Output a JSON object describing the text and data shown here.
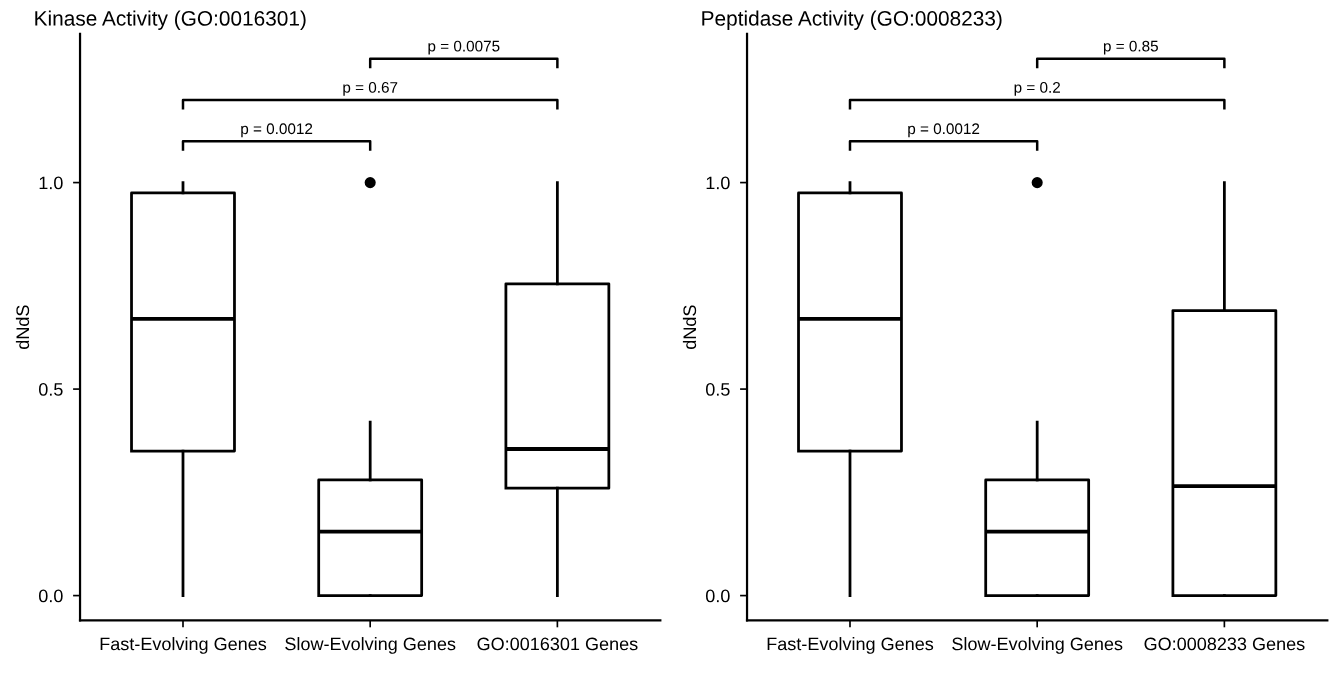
{
  "chart_data": [
    {
      "type": "box",
      "title": "Kinase Activity (GO:0016301)",
      "ylabel": "dNdS",
      "categories": [
        "Fast-Evolving Genes",
        "Slow-Evolving Genes",
        "GO:0016301 Genes"
      ],
      "boxes": [
        {
          "low": 0,
          "q1": 0.35,
          "median": 0.67,
          "q3": 0.975,
          "high": 1.0
        },
        {
          "low": 0,
          "q1": 0,
          "median": 0.155,
          "q3": 0.28,
          "high": 0.42,
          "outliers": [
            1.0
          ]
        },
        {
          "low": 0,
          "q1": 0.26,
          "median": 0.355,
          "q3": 0.755,
          "high": 1.0
        }
      ],
      "ylim": [
        -0.06,
        1.36
      ],
      "yticks": [
        {
          "value": 0,
          "label": "0.0"
        },
        {
          "value": 0.5,
          "label": "0.5"
        },
        {
          "value": 1,
          "label": "1.0"
        }
      ],
      "annotations": [
        "p = 0.0012",
        "p = 0.67",
        "p = 0.0075"
      ],
      "grid": false,
      "legend": false
    },
    {
      "type": "box",
      "title": "Peptidase Activity (GO:0008233)",
      "ylabel": "dNdS",
      "categories": [
        "Fast-Evolving Genes",
        "Slow-Evolving Genes",
        "GO:0008233 Genes"
      ],
      "boxes": [
        {
          "low": 0,
          "q1": 0.35,
          "median": 0.67,
          "q3": 0.975,
          "high": 1.0
        },
        {
          "low": 0,
          "q1": 0,
          "median": 0.155,
          "q3": 0.28,
          "high": 0.42,
          "outliers": [
            1.0
          ]
        },
        {
          "low": 0,
          "q1": 0,
          "median": 0.265,
          "q3": 0.69,
          "high": 1.0
        }
      ],
      "ylim": [
        -0.06,
        1.36
      ],
      "yticks": [
        {
          "value": 0,
          "label": "0.0"
        },
        {
          "value": 0.5,
          "label": "0.5"
        },
        {
          "value": 1,
          "label": "1.0"
        }
      ],
      "annotations": [
        "p = 0.0012",
        "p = 0.2",
        "p = 0.85"
      ],
      "grid": false,
      "legend": false
    }
  ]
}
